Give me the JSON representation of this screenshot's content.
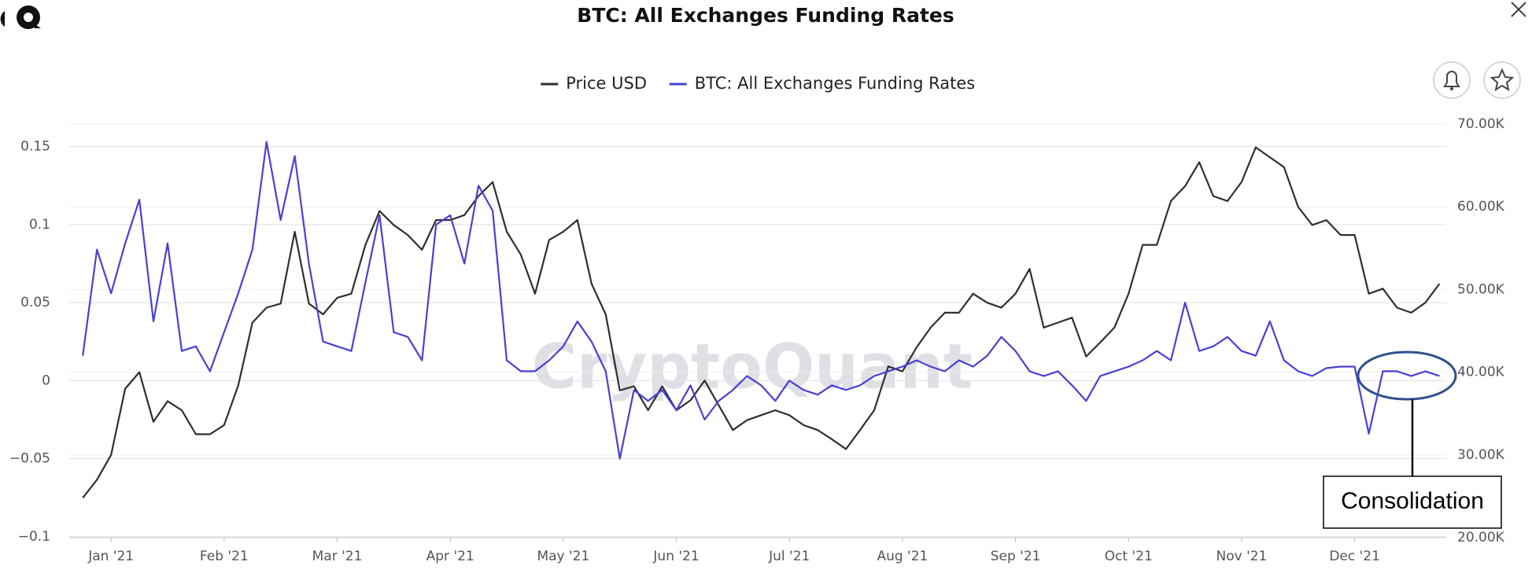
{
  "chart_data": {
    "type": "line",
    "title": "BTC: All Exchanges Funding Rates",
    "watermark": "CryptoQuant",
    "annotation": "Consolidation",
    "x": [
      0.75,
      0.875,
      1,
      1.125,
      1.25,
      1.375,
      1.5,
      1.625,
      1.75,
      1.875,
      2,
      2.125,
      2.25,
      2.375,
      2.5,
      2.625,
      2.75,
      2.875,
      3,
      3.125,
      3.25,
      3.375,
      3.5,
      3.625,
      3.75,
      3.875,
      4,
      4.125,
      4.25,
      4.375,
      4.5,
      4.625,
      4.75,
      4.875,
      5,
      5.125,
      5.25,
      5.375,
      5.5,
      5.625,
      5.75,
      5.875,
      6,
      6.125,
      6.25,
      6.375,
      6.5,
      6.625,
      6.75,
      6.875,
      7,
      7.125,
      7.25,
      7.375,
      7.5,
      7.625,
      7.75,
      7.875,
      8,
      8.125,
      8.25,
      8.375,
      8.5,
      8.625,
      8.75,
      8.875,
      9,
      9.125,
      9.25,
      9.375,
      9.5,
      9.625,
      9.75,
      9.875,
      10,
      10.125,
      10.25,
      10.375,
      10.5,
      10.625,
      10.75,
      10.875,
      11,
      11.125,
      11.25,
      11.375,
      11.5,
      11.625,
      11.75,
      11.875,
      12,
      12.125,
      12.25,
      12.375,
      12.5,
      12.625,
      12.75
    ],
    "xlim": [
      0.63,
      12.81
    ],
    "xticks": [
      {
        "value": 1,
        "label": "Jan '21"
      },
      {
        "value": 2,
        "label": "Feb '21"
      },
      {
        "value": 3,
        "label": "Mar '21"
      },
      {
        "value": 4,
        "label": "Apr '21"
      },
      {
        "value": 5,
        "label": "May '21"
      },
      {
        "value": 6,
        "label": "Jun '21"
      },
      {
        "value": 7,
        "label": "Jul '21"
      },
      {
        "value": 8,
        "label": "Aug '21"
      },
      {
        "value": 9,
        "label": "Sep '21"
      },
      {
        "value": 10,
        "label": "Oct '21"
      },
      {
        "value": 11,
        "label": "Nov '21"
      },
      {
        "value": 12,
        "label": "Dec '21"
      }
    ],
    "ylim": [
      -0.1006,
      0.1644
    ],
    "yticks": [
      {
        "value": -0.1,
        "label": "−0.1"
      },
      {
        "value": -0.05,
        "label": "−0.05"
      },
      0,
      0.05,
      0.1,
      0.15
    ],
    "y2lim": [
      20000,
      70000
    ],
    "y2ticks": [
      {
        "value": 20000,
        "label": "20.00K"
      },
      {
        "value": 30000,
        "label": "30.00K"
      },
      {
        "value": 40000,
        "label": "40.00K"
      },
      {
        "value": 50000,
        "label": "50.00K"
      },
      {
        "value": 60000,
        "label": "60.00K"
      },
      {
        "value": 70000,
        "label": "70.00K"
      }
    ],
    "grid": true,
    "legend": "top",
    "series": [
      {
        "name": "Price USD",
        "color": "#2f2f2f",
        "axis": "y2",
        "values": [
          24800,
          27000,
          30000,
          38000,
          40000,
          34000,
          36500,
          35400,
          32500,
          32500,
          33600,
          38400,
          46000,
          47800,
          48300,
          57000,
          48300,
          47000,
          49000,
          49500,
          55400,
          59500,
          57800,
          56600,
          54800,
          58400,
          58400,
          59000,
          61300,
          63000,
          57000,
          54200,
          49500,
          56000,
          57000,
          58400,
          50700,
          47000,
          37800,
          38300,
          35400,
          38300,
          35400,
          36600,
          39000,
          36000,
          33000,
          34200,
          34800,
          35400,
          34800,
          33600,
          33000,
          31900,
          30700,
          33000,
          35400,
          40700,
          40100,
          43000,
          45400,
          47200,
          47200,
          49500,
          48400,
          47800,
          49500,
          52500,
          45400,
          46000,
          46600,
          41900,
          43600,
          45400,
          49500,
          55400,
          55400,
          60700,
          62500,
          65400,
          61300,
          60700,
          63000,
          67200,
          66000,
          64800,
          60000,
          57800,
          58400,
          56600,
          56600,
          49500,
          50100,
          47800,
          47200,
          48400,
          50700
        ]
      },
      {
        "name": "BTC: All Exchanges Funding Rates",
        "color": "#4a40d4",
        "values": [
          0.016,
          0.084,
          0.056,
          0.088,
          0.116,
          0.038,
          0.088,
          0.019,
          0.022,
          0.006,
          0.031,
          0.056,
          0.084,
          0.153,
          0.103,
          0.144,
          0.075,
          0.025,
          0.022,
          0.019,
          0.063,
          0.106,
          0.031,
          0.028,
          0.013,
          0.1,
          0.106,
          0.075,
          0.125,
          0.109,
          0.013,
          0.006,
          0.006,
          0.013,
          0.022,
          0.038,
          0.025,
          0.006,
          -0.05,
          -0.006,
          -0.013,
          -0.006,
          -0.019,
          -0.003,
          -0.025,
          -0.013,
          -0.006,
          0.003,
          -0.003,
          -0.013,
          0,
          -0.006,
          -0.009,
          -0.003,
          -0.006,
          -0.003,
          0.003,
          0.006,
          0.009,
          0.013,
          0.009,
          0.006,
          0.013,
          0.009,
          0.016,
          0.028,
          0.019,
          0.006,
          0.003,
          0.006,
          -0.003,
          -0.013,
          0.003,
          0.006,
          0.009,
          0.013,
          0.019,
          0.013,
          0.05,
          0.019,
          0.022,
          0.028,
          0.019,
          0.016,
          0.038,
          0.013,
          0.006,
          0.003,
          0.008,
          0.009,
          0.009,
          -0.034,
          0.006,
          0.006,
          0.003,
          0.006,
          0.003
        ]
      }
    ]
  }
}
